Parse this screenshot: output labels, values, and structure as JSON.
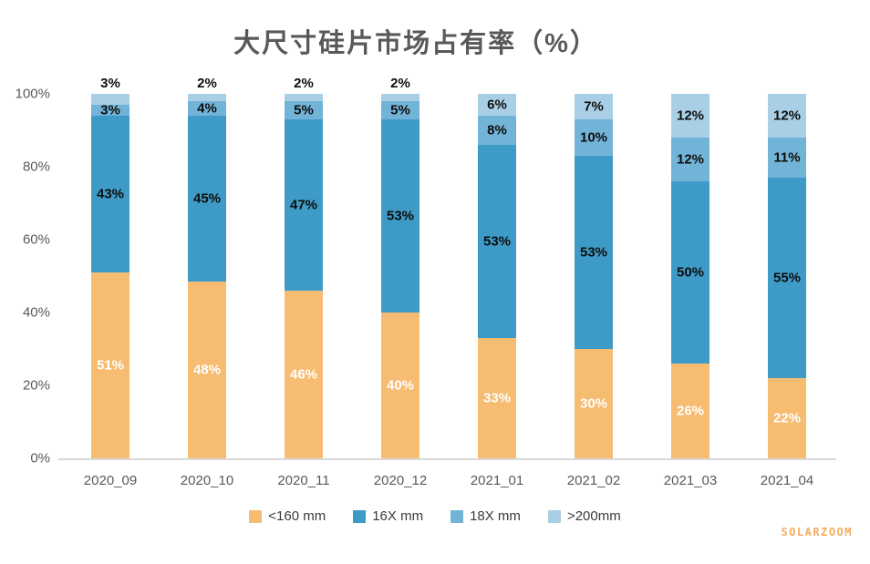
{
  "title": "大尺寸硅片市场占有率（%）",
  "watermark": "SOLARZOOM",
  "colors": {
    "background": "#FFFFFF",
    "title_text": "#595959",
    "axis_text": "#595959",
    "baseline": "#D9D9D9",
    "data_label_dark": "#0D0D0D",
    "data_label_light": "#FFFFFF",
    "watermark_text": "#F2AE60"
  },
  "chart_data": {
    "type": "bar",
    "stacked": true,
    "title": "大尺寸硅片市场占有率（%）",
    "xlabel": "",
    "ylabel": "",
    "ylim": [
      0,
      100
    ],
    "grid": false,
    "legend_position": "bottom",
    "data_labels": "percent",
    "outside_label_threshold": 5,
    "y_tick_labels": [
      "0%",
      "20%",
      "40%",
      "60%",
      "80%",
      "100%"
    ],
    "categories": [
      "2020_09",
      "2020_10",
      "2020_11",
      "2020_12",
      "2021_01",
      "2021_02",
      "2021_03",
      "2021_04"
    ],
    "series": [
      {
        "name": "<160 mm",
        "color": "#F6BC72",
        "label_color": "#FFFFFF",
        "values": [
          51,
          48,
          46,
          40,
          33,
          30,
          26,
          22
        ]
      },
      {
        "name": "16X mm",
        "color": "#3E9BC7",
        "label_color": "#0D0D0D",
        "values": [
          43,
          45,
          47,
          53,
          53,
          53,
          50,
          55
        ]
      },
      {
        "name": "18X mm",
        "color": "#72B4D8",
        "label_color": "#0D0D0D",
        "values": [
          3,
          4,
          5,
          5,
          8,
          10,
          12,
          11
        ]
      },
      {
        "name": ">200mm",
        "color": "#A9CFE6",
        "label_color": "#0D0D0D",
        "values": [
          3,
          2,
          2,
          2,
          6,
          7,
          12,
          12
        ]
      }
    ]
  }
}
